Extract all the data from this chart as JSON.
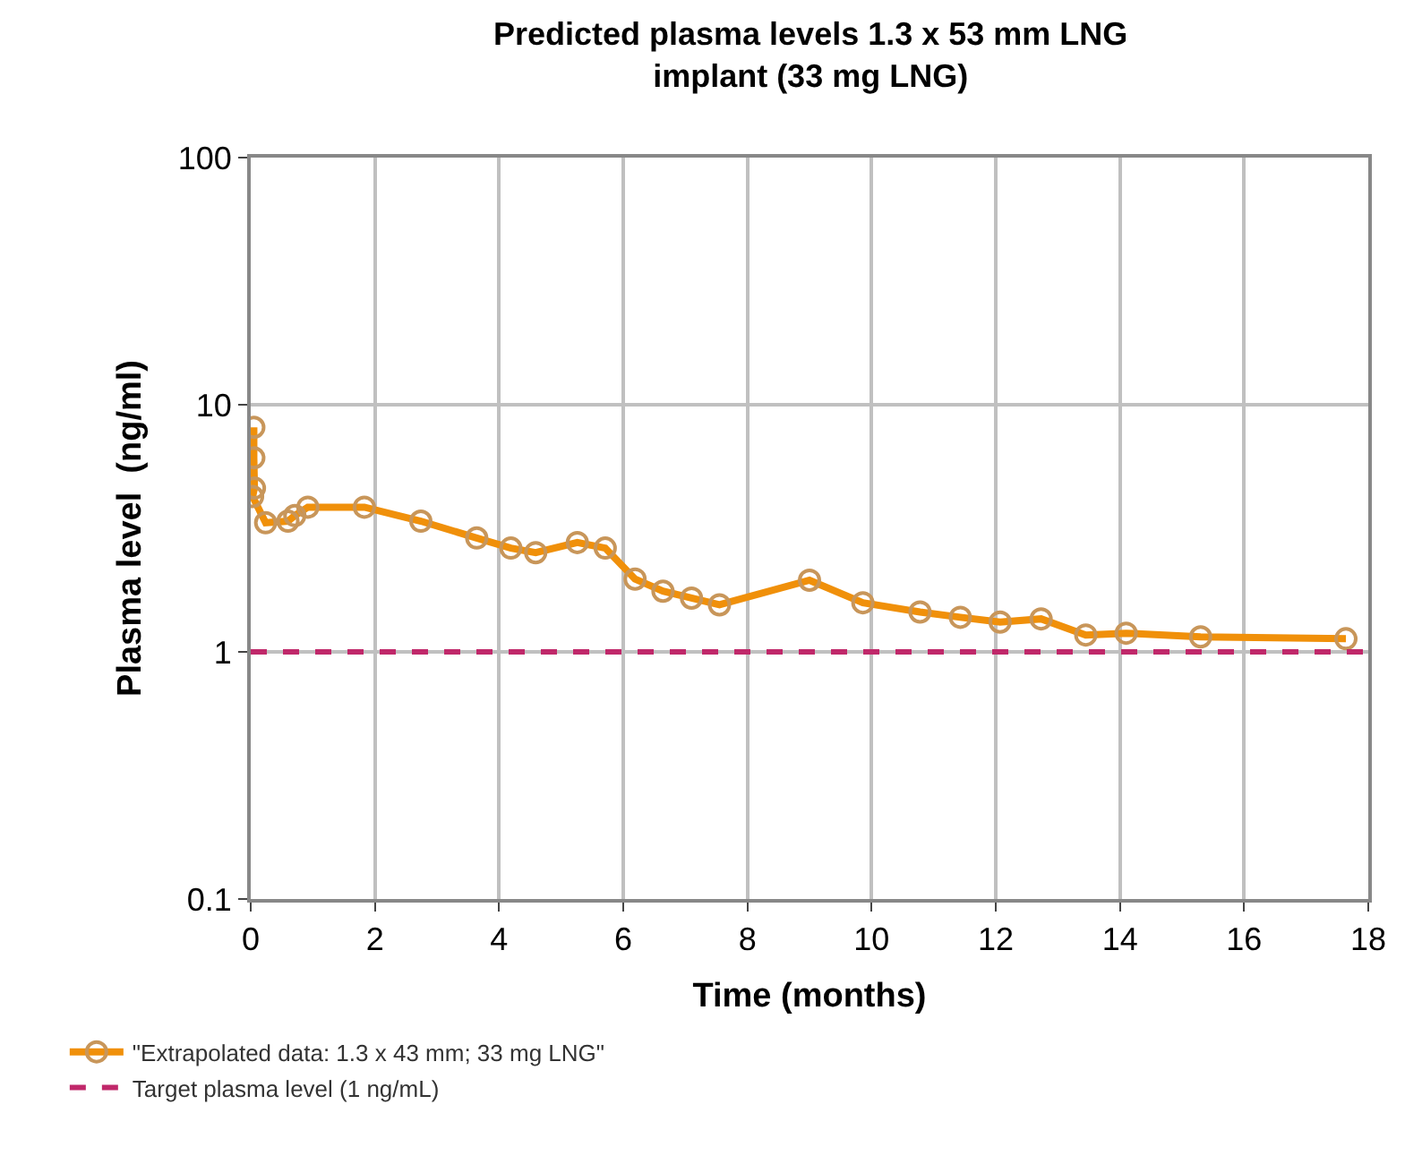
{
  "chart_data": {
    "type": "line",
    "title": "Predicted plasma levels 1.3 x 53 mm LNG implant (33 mg LNG)",
    "xlabel": "Time (months)",
    "ylabel": "Plasma level  (ng/ml)",
    "log": "y",
    "grid": true,
    "legend": "bottom left",
    "marker": "circle",
    "line_style": "solid",
    "xlim": [
      0,
      18
    ],
    "xticks": [
      0,
      2,
      4,
      6,
      8,
      10,
      12,
      14,
      16,
      18
    ],
    "ylim": [
      0.1,
      100
    ],
    "yticks": [
      0.1,
      1,
      10,
      100
    ],
    "series": [
      {
        "name": "\"Extrapolated data: 1.3 x 43 mm; 33 mg LNG\"",
        "color": "#f0900a",
        "x": [
          0.05,
          0.05,
          0.06,
          0.03,
          0.24,
          0.6,
          0.71,
          0.92,
          1.83,
          2.74,
          3.64,
          4.19,
          4.59,
          5.26,
          5.71,
          6.19,
          6.64,
          7.1,
          7.55,
          9.0,
          9.86,
          10.78,
          11.43,
          12.07,
          12.73,
          13.45,
          14.1,
          15.3,
          17.64
        ],
        "values": [
          8.1,
          6.1,
          4.6,
          4.25,
          3.33,
          3.38,
          3.56,
          3.85,
          3.85,
          3.38,
          2.89,
          2.63,
          2.52,
          2.77,
          2.63,
          1.97,
          1.76,
          1.65,
          1.55,
          1.95,
          1.58,
          1.45,
          1.38,
          1.32,
          1.36,
          1.17,
          1.19,
          1.15,
          1.13
        ]
      }
    ],
    "ref_lines": [
      {
        "axis": "y",
        "value": 1,
        "label": "Target plasma level (1 ng/mL)",
        "color": "#c0286a",
        "line_style": "dashed"
      }
    ]
  }
}
